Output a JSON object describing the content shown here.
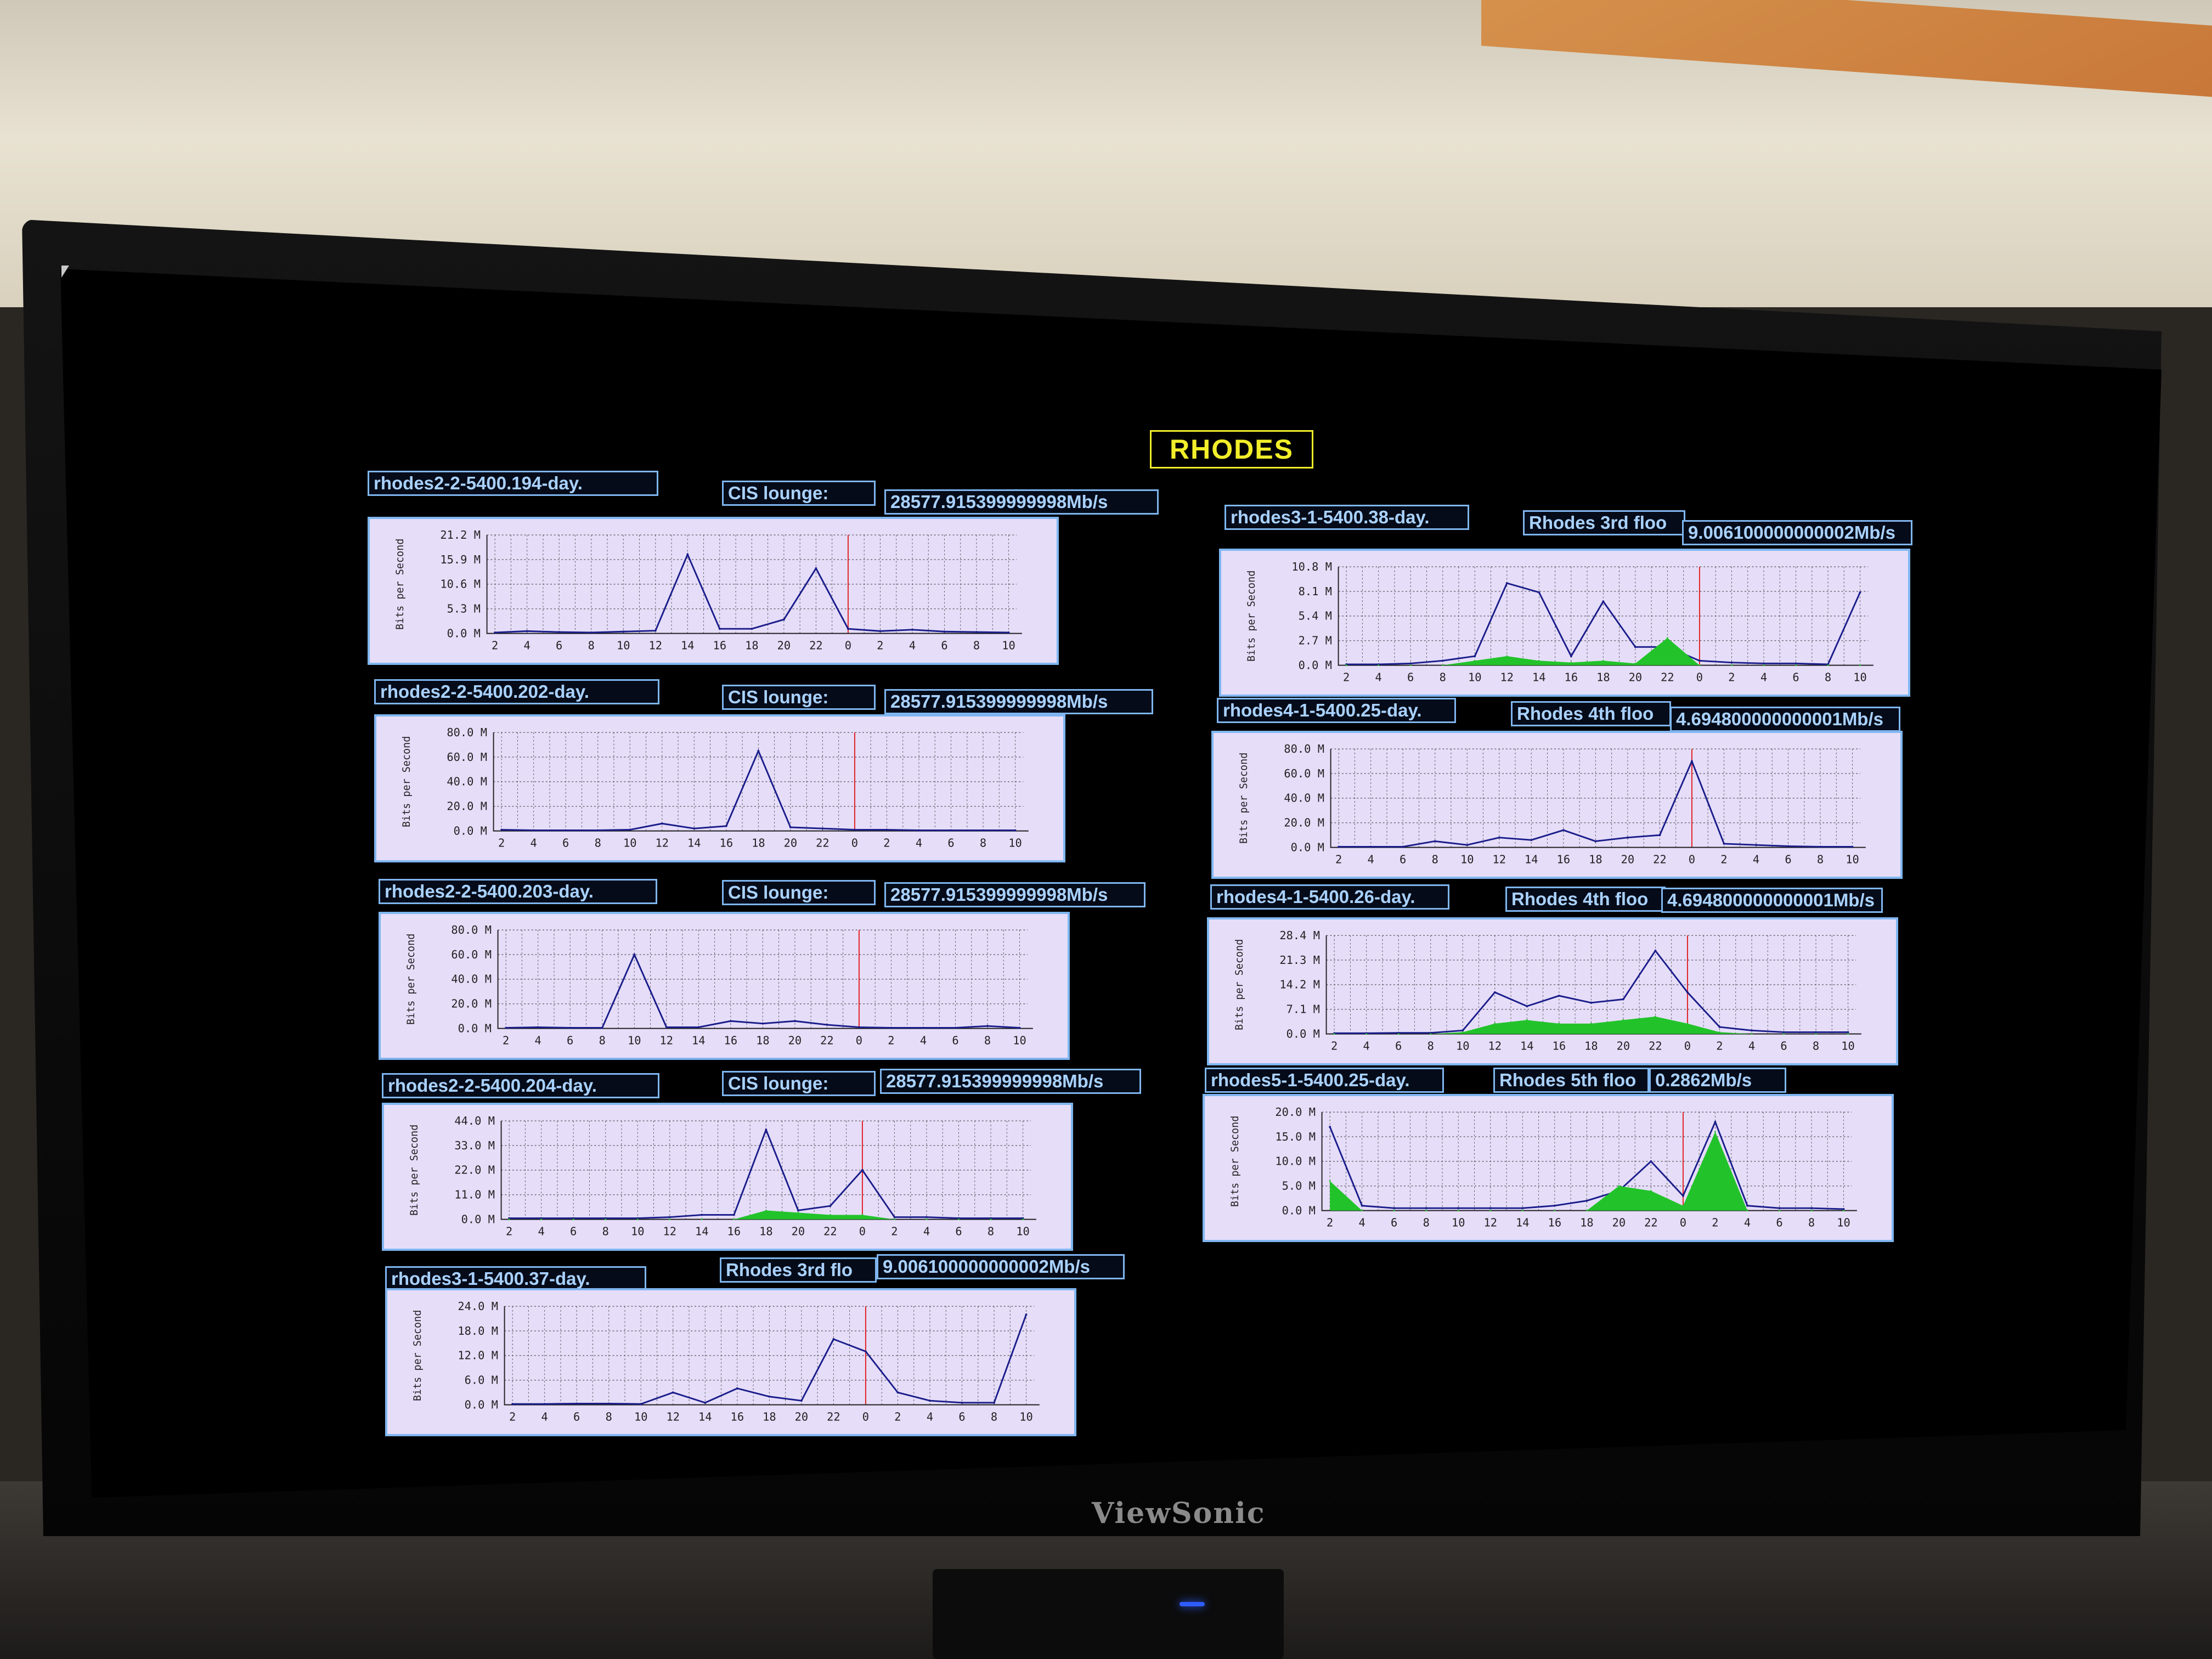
{
  "page": {
    "title": "RHODES",
    "brand": "ViewSonic"
  },
  "colors": {
    "title": "#f2ee2a",
    "tag_border": "#7fb6f0",
    "line": "#1a1d8a",
    "fill": "#22c32a",
    "now_marker": "#e02020",
    "grid": "#555555",
    "background": "#e6ddf9"
  },
  "hours": [
    "2",
    "4",
    "6",
    "8",
    "10",
    "12",
    "14",
    "16",
    "18",
    "20",
    "22",
    "0",
    "2",
    "4",
    "6",
    "8",
    "10"
  ],
  "y_axis_label": "Bits per Second",
  "panels": [
    {
      "id": "rhodes2-2-5400.194-day.",
      "location": "CIS lounge:",
      "rate": "28577.915399999998Mb/s",
      "y_ticks": [
        "21.2 M",
        "15.9 M",
        "10.6 M",
        "5.3 M",
        "0.0 M"
      ]
    },
    {
      "id": "rhodes2-2-5400.202-day.",
      "location": "CIS lounge:",
      "rate": "28577.915399999998Mb/s",
      "y_ticks": [
        "80.0 M",
        "60.0 M",
        "40.0 M",
        "20.0 M",
        "0.0 M"
      ]
    },
    {
      "id": "rhodes2-2-5400.203-day.",
      "location": "CIS lounge:",
      "rate": "28577.915399999998Mb/s",
      "y_ticks": [
        "80.0 M",
        "60.0 M",
        "40.0 M",
        "20.0 M",
        "0.0 M"
      ]
    },
    {
      "id": "rhodes2-2-5400.204-day.",
      "location": "CIS lounge:",
      "rate": "28577.915399999998Mb/s",
      "y_ticks": [
        "44.0 M",
        "33.0 M",
        "22.0 M",
        "11.0 M",
        "0.0 M"
      ]
    },
    {
      "id": "rhodes3-1-5400.37-day.",
      "location": "Rhodes 3rd flo",
      "rate": "9.006100000000002Mb/s",
      "y_ticks": [
        "24.0 M",
        "18.0 M",
        "12.0 M",
        "6.0 M",
        "0.0 M"
      ]
    },
    {
      "id": "rhodes3-1-5400.38-day.",
      "location": "Rhodes 3rd floo",
      "rate": "9.006100000000002Mb/s",
      "y_ticks": [
        "10.8 M",
        "8.1 M",
        "5.4 M",
        "2.7 M",
        "0.0 M"
      ]
    },
    {
      "id": "rhodes4-1-5400.25-day.",
      "location": "Rhodes 4th floo",
      "rate": "4.694800000000001Mb/s",
      "y_ticks": [
        "80.0 M",
        "60.0 M",
        "40.0 M",
        "20.0 M",
        "0.0 M"
      ]
    },
    {
      "id": "rhodes4-1-5400.26-day.",
      "location": "Rhodes 4th floo",
      "rate": "4.694800000000001Mb/s",
      "y_ticks": [
        "28.4 M",
        "21.3 M",
        "14.2 M",
        "7.1 M",
        "0.0 M"
      ]
    },
    {
      "id": "rhodes5-1-5400.25-day.",
      "location": "Rhodes 5th floo",
      "rate": "0.2862Mb/s",
      "y_ticks": [
        "20.0 M",
        "15.0 M",
        "10.0 M",
        "5.0 M",
        "0.0 M"
      ]
    }
  ],
  "chart_data": [
    {
      "type": "line",
      "ylabel": "Bits per Second",
      "ylim": [
        0,
        21.2
      ],
      "grid": true,
      "x": [
        2,
        4,
        6,
        8,
        10,
        12,
        14,
        16,
        18,
        20,
        22,
        0,
        2,
        4,
        6,
        8,
        10
      ],
      "series": [
        {
          "values": [
            0.2,
            0.5,
            0.3,
            0.2,
            0.4,
            0.6,
            17,
            1,
            1,
            3,
            14,
            1,
            0.5,
            0.8,
            0.4,
            0.3,
            0.2
          ]
        }
      ]
    },
    {
      "type": "line",
      "ylabel": "Bits per Second",
      "ylim": [
        0,
        80
      ],
      "grid": true,
      "x": [
        2,
        4,
        6,
        8,
        10,
        12,
        14,
        16,
        18,
        20,
        22,
        0,
        2,
        4,
        6,
        8,
        10
      ],
      "series": [
        {
          "values": [
            1,
            0.5,
            0.5,
            0.5,
            1,
            6,
            2,
            4,
            65,
            3,
            2,
            1,
            1,
            0.5,
            0.5,
            0.5,
            0.5
          ]
        }
      ]
    },
    {
      "type": "line",
      "ylabel": "Bits per Second",
      "ylim": [
        0,
        80
      ],
      "grid": true,
      "x": [
        2,
        4,
        6,
        8,
        10,
        12,
        14,
        16,
        18,
        20,
        22,
        0,
        2,
        4,
        6,
        8,
        10
      ],
      "series": [
        {
          "values": [
            0.5,
            1,
            0.5,
            0.5,
            60,
            1,
            1,
            6,
            4,
            6,
            3,
            1,
            0.5,
            0.5,
            0.5,
            2,
            0.5
          ]
        }
      ]
    },
    {
      "type": "line",
      "ylabel": "Bits per Second",
      "ylim": [
        0,
        44
      ],
      "grid": true,
      "x": [
        2,
        4,
        6,
        8,
        10,
        12,
        14,
        16,
        18,
        20,
        22,
        0,
        2,
        4,
        6,
        8,
        10
      ],
      "series": [
        {
          "values": [
            0.5,
            0.5,
            0.5,
            0.5,
            0.5,
            1,
            2,
            2,
            40,
            4,
            6,
            22,
            1,
            1,
            0.5,
            0.5,
            0.5
          ]
        },
        {
          "values": [
            0,
            0,
            0,
            0,
            0,
            0,
            0,
            0,
            4,
            3,
            2,
            2,
            0,
            0,
            0,
            0,
            0
          ]
        }
      ]
    },
    {
      "type": "line",
      "ylabel": "Bits per Second",
      "ylim": [
        0,
        24
      ],
      "grid": true,
      "x": [
        2,
        4,
        6,
        8,
        10,
        12,
        14,
        16,
        18,
        20,
        22,
        0,
        2,
        4,
        6,
        8,
        10
      ],
      "series": [
        {
          "values": [
            0.2,
            0.2,
            0.3,
            0.3,
            0.2,
            3,
            0.5,
            4,
            2,
            1,
            16,
            13,
            3,
            1,
            0.5,
            0.5,
            22
          ]
        }
      ]
    },
    {
      "type": "line",
      "ylabel": "Bits per Second",
      "ylim": [
        0,
        10.8
      ],
      "grid": true,
      "x": [
        2,
        4,
        6,
        8,
        10,
        12,
        14,
        16,
        18,
        20,
        22,
        0,
        2,
        4,
        6,
        8,
        10
      ],
      "series": [
        {
          "values": [
            0.1,
            0.1,
            0.2,
            0.5,
            1,
            9,
            8,
            1,
            7,
            2,
            2,
            0.5,
            0.3,
            0.2,
            0.2,
            0.1,
            8
          ]
        },
        {
          "values": [
            0,
            0,
            0,
            0,
            0.5,
            1,
            0.5,
            0.3,
            0.5,
            0.2,
            3,
            0,
            0,
            0,
            0,
            0,
            0
          ]
        }
      ]
    },
    {
      "type": "line",
      "ylabel": "Bits per Second",
      "ylim": [
        0,
        80
      ],
      "grid": true,
      "x": [
        2,
        4,
        6,
        8,
        10,
        12,
        14,
        16,
        18,
        20,
        22,
        0,
        2,
        4,
        6,
        8,
        10
      ],
      "series": [
        {
          "values": [
            0.5,
            0.5,
            0.5,
            5,
            2,
            8,
            6,
            14,
            5,
            8,
            10,
            70,
            3,
            2,
            1,
            0.5,
            0.5
          ]
        }
      ]
    },
    {
      "type": "line",
      "ylabel": "Bits per Second",
      "ylim": [
        0,
        28.4
      ],
      "grid": true,
      "x": [
        2,
        4,
        6,
        8,
        10,
        12,
        14,
        16,
        18,
        20,
        22,
        0,
        2,
        4,
        6,
        8,
        10
      ],
      "series": [
        {
          "values": [
            0.2,
            0.2,
            0.3,
            0.3,
            1,
            12,
            8,
            11,
            9,
            10,
            24,
            12,
            2,
            1,
            0.5,
            0.5,
            0.5
          ]
        },
        {
          "values": [
            0,
            0,
            0,
            0,
            0.5,
            3,
            4,
            3,
            3,
            4,
            5,
            3,
            0.5,
            0,
            0,
            0,
            0
          ]
        }
      ]
    },
    {
      "type": "line",
      "ylabel": "Bits per Second",
      "ylim": [
        0,
        20
      ],
      "grid": true,
      "x": [
        2,
        4,
        6,
        8,
        10,
        12,
        14,
        16,
        18,
        20,
        22,
        0,
        2,
        4,
        6,
        8,
        10
      ],
      "series": [
        {
          "values": [
            17,
            1,
            0.5,
            0.5,
            0.5,
            0.5,
            0.5,
            1,
            2,
            4,
            10,
            3,
            18,
            1,
            0.5,
            0.5,
            0.3
          ]
        },
        {
          "values": [
            6,
            0,
            0,
            0,
            0,
            0,
            0,
            0,
            0,
            5,
            4,
            1,
            16,
            0,
            0,
            0,
            0
          ]
        }
      ]
    }
  ]
}
